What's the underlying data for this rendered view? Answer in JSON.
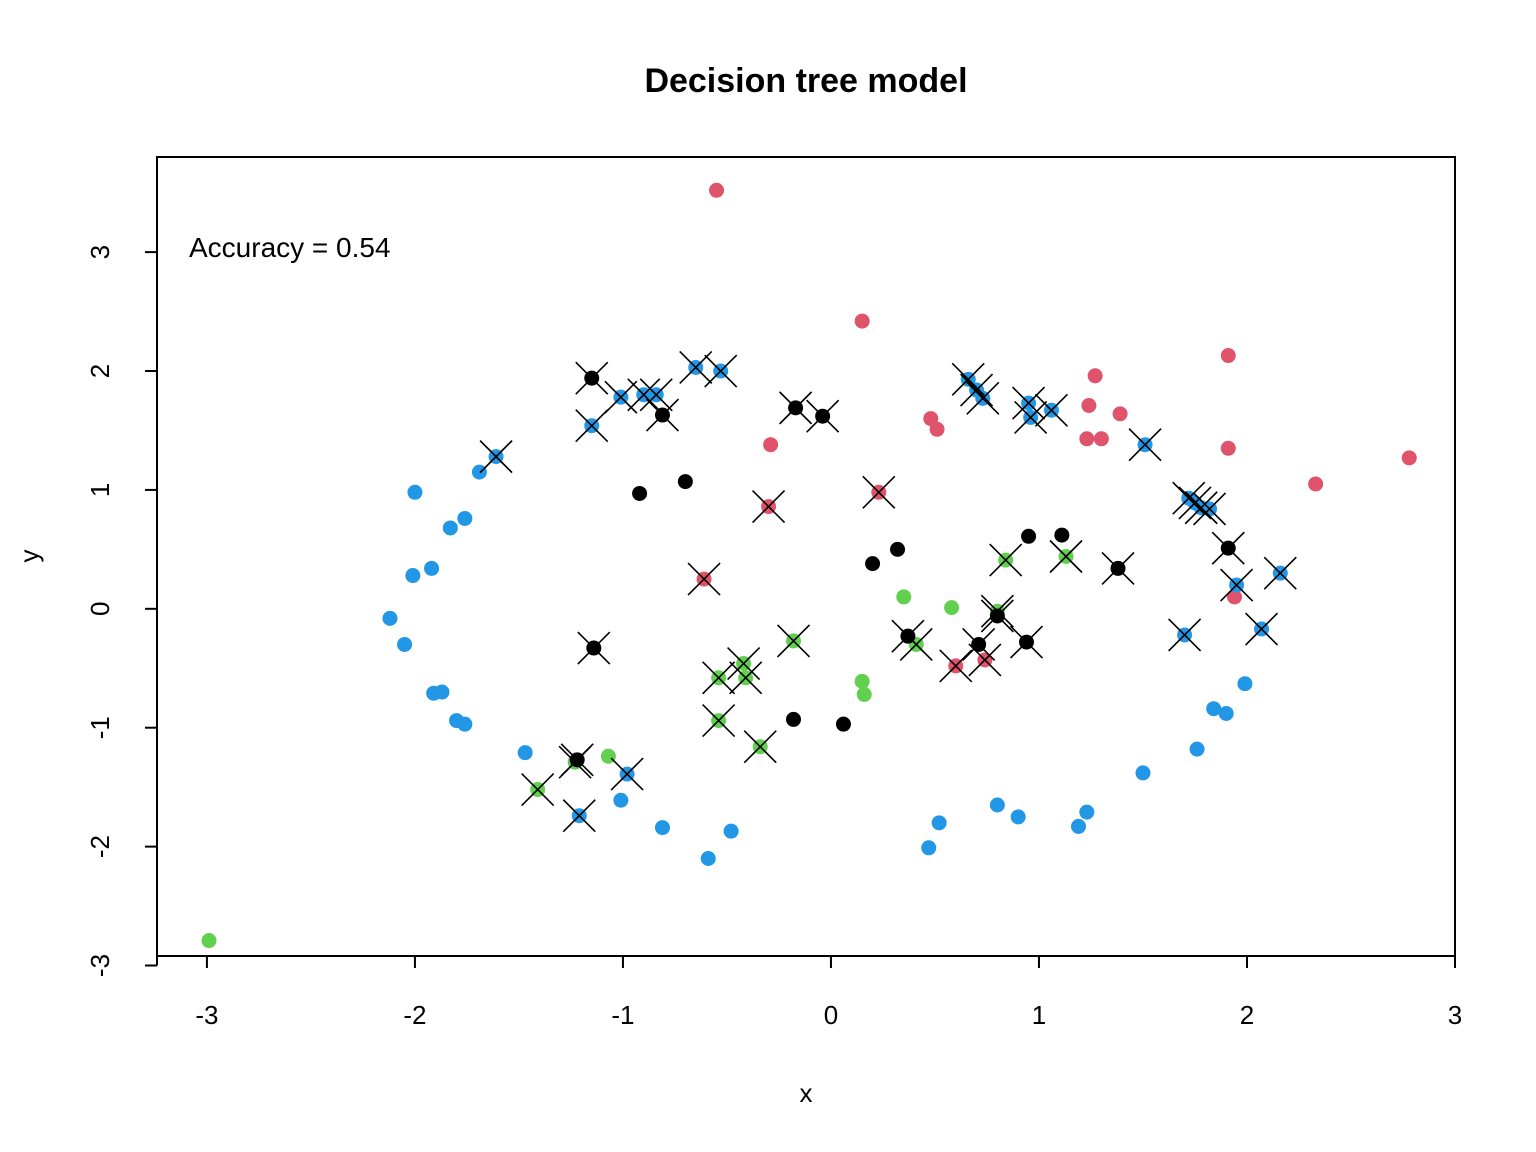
{
  "chart_data": {
    "type": "scatter",
    "title": "Decision tree model",
    "xlabel": "x",
    "ylabel": "y",
    "xlim": [
      -3.24,
      3.0
    ],
    "ylim": [
      -2.92,
      3.8
    ],
    "xticks": [
      -3,
      -2,
      -1,
      0,
      1,
      2,
      3
    ],
    "yticks": [
      -3,
      -2,
      -1,
      0,
      1,
      2,
      3
    ],
    "xtick_labels": [
      "-3",
      "-2",
      "-1",
      "0",
      "1",
      "2",
      "3"
    ],
    "ytick_labels": [
      "-3",
      "-2",
      "-1",
      "0",
      "1",
      "2",
      "3"
    ],
    "annotation": "Accuracy =  0.54",
    "grid": false,
    "legend": "none",
    "colors": {
      "black": "#000000",
      "red": "#DF536B",
      "green": "#61D04F",
      "blue": "#2297E6"
    },
    "points": [
      {
        "x": -0.55,
        "y": 3.52,
        "c": "red",
        "m": 0
      },
      {
        "x": 0.15,
        "y": 2.42,
        "c": "red",
        "m": 0
      },
      {
        "x": 1.91,
        "y": 2.13,
        "c": "red",
        "m": 0
      },
      {
        "x": 1.27,
        "y": 1.96,
        "c": "red",
        "m": 0
      },
      {
        "x": 1.24,
        "y": 1.71,
        "c": "red",
        "m": 0
      },
      {
        "x": 1.39,
        "y": 1.64,
        "c": "red",
        "m": 0
      },
      {
        "x": 0.48,
        "y": 1.6,
        "c": "red",
        "m": 0
      },
      {
        "x": 0.51,
        "y": 1.51,
        "c": "red",
        "m": 0
      },
      {
        "x": 1.23,
        "y": 1.43,
        "c": "red",
        "m": 0
      },
      {
        "x": 1.3,
        "y": 1.43,
        "c": "red",
        "m": 0
      },
      {
        "x": -0.29,
        "y": 1.38,
        "c": "red",
        "m": 0
      },
      {
        "x": 1.91,
        "y": 1.35,
        "c": "red",
        "m": 0
      },
      {
        "x": 2.78,
        "y": 1.27,
        "c": "red",
        "m": 0
      },
      {
        "x": 2.33,
        "y": 1.05,
        "c": "red",
        "m": 0
      },
      {
        "x": 1.94,
        "y": 0.1,
        "c": "red",
        "m": 0
      },
      {
        "x": -0.3,
        "y": 0.86,
        "c": "red",
        "m": 1
      },
      {
        "x": 0.23,
        "y": 0.98,
        "c": "red",
        "m": 1
      },
      {
        "x": -0.61,
        "y": 0.25,
        "c": "red",
        "m": 1
      },
      {
        "x": 0.6,
        "y": -0.48,
        "c": "red",
        "m": 1
      },
      {
        "x": 0.74,
        "y": -0.43,
        "c": "red",
        "m": 1
      },
      {
        "x": -2.99,
        "y": -2.79,
        "c": "green",
        "m": 0
      },
      {
        "x": 0.35,
        "y": 0.1,
        "c": "green",
        "m": 0
      },
      {
        "x": 0.58,
        "y": 0.01,
        "c": "green",
        "m": 0
      },
      {
        "x": 0.15,
        "y": -0.61,
        "c": "green",
        "m": 0
      },
      {
        "x": 0.16,
        "y": -0.72,
        "c": "green",
        "m": 0
      },
      {
        "x": -1.07,
        "y": -1.24,
        "c": "green",
        "m": 0
      },
      {
        "x": 0.84,
        "y": 0.41,
        "c": "green",
        "m": 1
      },
      {
        "x": 1.13,
        "y": 0.44,
        "c": "green",
        "m": 1
      },
      {
        "x": 0.8,
        "y": -0.02,
        "c": "green",
        "m": 1
      },
      {
        "x": 0.41,
        "y": -0.3,
        "c": "green",
        "m": 1
      },
      {
        "x": -0.18,
        "y": -0.27,
        "c": "green",
        "m": 1
      },
      {
        "x": -0.42,
        "y": -0.46,
        "c": "green",
        "m": 1
      },
      {
        "x": -0.41,
        "y": -0.58,
        "c": "green",
        "m": 1
      },
      {
        "x": -0.54,
        "y": -0.58,
        "c": "green",
        "m": 1
      },
      {
        "x": -0.54,
        "y": -0.94,
        "c": "green",
        "m": 1
      },
      {
        "x": -0.34,
        "y": -1.16,
        "c": "green",
        "m": 1
      },
      {
        "x": -1.23,
        "y": -1.29,
        "c": "green",
        "m": 1
      },
      {
        "x": -1.41,
        "y": -1.52,
        "c": "green",
        "m": 1
      },
      {
        "x": -0.7,
        "y": 1.07,
        "c": "black",
        "m": 0
      },
      {
        "x": -0.92,
        "y": 0.97,
        "c": "black",
        "m": 0
      },
      {
        "x": 0.2,
        "y": 0.38,
        "c": "black",
        "m": 0
      },
      {
        "x": 0.32,
        "y": 0.5,
        "c": "black",
        "m": 0
      },
      {
        "x": 0.95,
        "y": 0.61,
        "c": "black",
        "m": 0
      },
      {
        "x": 1.11,
        "y": 0.62,
        "c": "black",
        "m": 0
      },
      {
        "x": -0.18,
        "y": -0.93,
        "c": "black",
        "m": 0
      },
      {
        "x": 0.06,
        "y": -0.97,
        "c": "black",
        "m": 0
      },
      {
        "x": -1.15,
        "y": 1.94,
        "c": "black",
        "m": 1
      },
      {
        "x": -0.81,
        "y": 1.63,
        "c": "black",
        "m": 1
      },
      {
        "x": -0.17,
        "y": 1.69,
        "c": "black",
        "m": 1
      },
      {
        "x": -0.04,
        "y": 1.62,
        "c": "black",
        "m": 1
      },
      {
        "x": 1.91,
        "y": 0.51,
        "c": "black",
        "m": 1
      },
      {
        "x": 1.38,
        "y": 0.34,
        "c": "black",
        "m": 1
      },
      {
        "x": 0.8,
        "y": -0.06,
        "c": "black",
        "m": 1
      },
      {
        "x": 0.37,
        "y": -0.23,
        "c": "black",
        "m": 1
      },
      {
        "x": 0.71,
        "y": -0.3,
        "c": "black",
        "m": 1
      },
      {
        "x": 0.94,
        "y": -0.28,
        "c": "black",
        "m": 1
      },
      {
        "x": -1.14,
        "y": -0.33,
        "c": "black",
        "m": 1
      },
      {
        "x": -1.22,
        "y": -1.27,
        "c": "black",
        "m": 1
      },
      {
        "x": -2.0,
        "y": 0.98,
        "c": "blue",
        "m": 0
      },
      {
        "x": -1.69,
        "y": 1.15,
        "c": "blue",
        "m": 0
      },
      {
        "x": -1.76,
        "y": 0.76,
        "c": "blue",
        "m": 0
      },
      {
        "x": -1.83,
        "y": 0.68,
        "c": "blue",
        "m": 0
      },
      {
        "x": -1.92,
        "y": 0.34,
        "c": "blue",
        "m": 0
      },
      {
        "x": -2.01,
        "y": 0.28,
        "c": "blue",
        "m": 0
      },
      {
        "x": -2.12,
        "y": -0.08,
        "c": "blue",
        "m": 0
      },
      {
        "x": -2.05,
        "y": -0.3,
        "c": "blue",
        "m": 0
      },
      {
        "x": -1.91,
        "y": -0.71,
        "c": "blue",
        "m": 0
      },
      {
        "x": -1.87,
        "y": -0.7,
        "c": "blue",
        "m": 0
      },
      {
        "x": -1.8,
        "y": -0.94,
        "c": "blue",
        "m": 0
      },
      {
        "x": -1.76,
        "y": -0.97,
        "c": "blue",
        "m": 0
      },
      {
        "x": -1.47,
        "y": -1.21,
        "c": "blue",
        "m": 0
      },
      {
        "x": -1.01,
        "y": -1.61,
        "c": "blue",
        "m": 0
      },
      {
        "x": -0.81,
        "y": -1.84,
        "c": "blue",
        "m": 0
      },
      {
        "x": -0.59,
        "y": -2.1,
        "c": "blue",
        "m": 0
      },
      {
        "x": -0.48,
        "y": -1.87,
        "c": "blue",
        "m": 0
      },
      {
        "x": 0.47,
        "y": -2.01,
        "c": "blue",
        "m": 0
      },
      {
        "x": 0.52,
        "y": -1.8,
        "c": "blue",
        "m": 0
      },
      {
        "x": 0.8,
        "y": -1.65,
        "c": "blue",
        "m": 0
      },
      {
        "x": 0.9,
        "y": -1.75,
        "c": "blue",
        "m": 0
      },
      {
        "x": 1.19,
        "y": -1.83,
        "c": "blue",
        "m": 0
      },
      {
        "x": 1.23,
        "y": -1.71,
        "c": "blue",
        "m": 0
      },
      {
        "x": 1.5,
        "y": -1.38,
        "c": "blue",
        "m": 0
      },
      {
        "x": 1.76,
        "y": -1.18,
        "c": "blue",
        "m": 0
      },
      {
        "x": 1.84,
        "y": -0.84,
        "c": "blue",
        "m": 0
      },
      {
        "x": 1.9,
        "y": -0.88,
        "c": "blue",
        "m": 0
      },
      {
        "x": 1.99,
        "y": -0.63,
        "c": "blue",
        "m": 0
      },
      {
        "x": -1.61,
        "y": 1.28,
        "c": "blue",
        "m": 1
      },
      {
        "x": -1.15,
        "y": 1.54,
        "c": "blue",
        "m": 1
      },
      {
        "x": -1.01,
        "y": 1.78,
        "c": "blue",
        "m": 1
      },
      {
        "x": -0.9,
        "y": 1.8,
        "c": "blue",
        "m": 1
      },
      {
        "x": -0.84,
        "y": 1.8,
        "c": "blue",
        "m": 1
      },
      {
        "x": -0.65,
        "y": 2.03,
        "c": "blue",
        "m": 1
      },
      {
        "x": -0.53,
        "y": 2.0,
        "c": "blue",
        "m": 1
      },
      {
        "x": 0.66,
        "y": 1.93,
        "c": "blue",
        "m": 1
      },
      {
        "x": 0.7,
        "y": 1.84,
        "c": "blue",
        "m": 1
      },
      {
        "x": 0.73,
        "y": 1.77,
        "c": "blue",
        "m": 1
      },
      {
        "x": 0.95,
        "y": 1.73,
        "c": "blue",
        "m": 1
      },
      {
        "x": 1.06,
        "y": 1.67,
        "c": "blue",
        "m": 1
      },
      {
        "x": 0.96,
        "y": 1.61,
        "c": "blue",
        "m": 1
      },
      {
        "x": 1.51,
        "y": 1.38,
        "c": "blue",
        "m": 1
      },
      {
        "x": 1.72,
        "y": 0.93,
        "c": "blue",
        "m": 1
      },
      {
        "x": 1.75,
        "y": 0.89,
        "c": "blue",
        "m": 1
      },
      {
        "x": 1.78,
        "y": 0.85,
        "c": "blue",
        "m": 1
      },
      {
        "x": 1.82,
        "y": 0.84,
        "c": "blue",
        "m": 1
      },
      {
        "x": 2.16,
        "y": 0.3,
        "c": "blue",
        "m": 1
      },
      {
        "x": 1.95,
        "y": 0.2,
        "c": "blue",
        "m": 1
      },
      {
        "x": 1.7,
        "y": -0.22,
        "c": "blue",
        "m": 1
      },
      {
        "x": 2.07,
        "y": -0.17,
        "c": "blue",
        "m": 1
      },
      {
        "x": -0.98,
        "y": -1.39,
        "c": "blue",
        "m": 1
      },
      {
        "x": -1.21,
        "y": -1.74,
        "c": "blue",
        "m": 1
      }
    ]
  }
}
